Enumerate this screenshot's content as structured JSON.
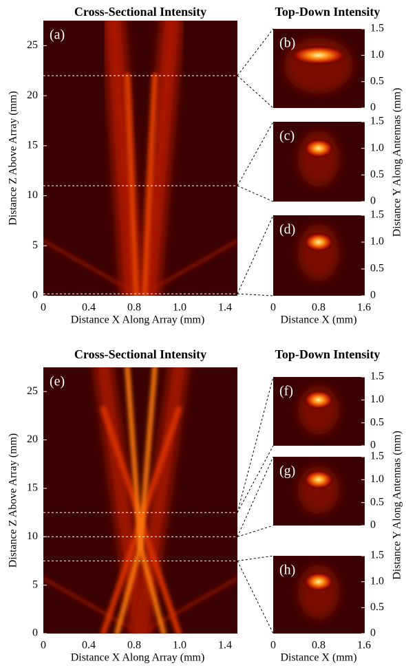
{
  "chart_data": [
    {
      "type": "heatmap",
      "cross_section": {
        "title": "Cross-Sectional Intensity",
        "panel_label": "(a)",
        "xlabel": "Distance X Along Array (mm)",
        "ylabel": "Distance Z Above Array (mm)",
        "xtick_labels": [
          "0",
          "0.4",
          "0.8",
          "1.0",
          "1.4"
        ],
        "ylim": [
          0,
          27.5
        ],
        "yticks": [
          0,
          5,
          10,
          15,
          20,
          25
        ],
        "slice_z": [
          22,
          11,
          0.2
        ]
      },
      "top_down": {
        "title": "Top-Down Intensity",
        "panel_labels": [
          "(b)",
          "(c)",
          "(d)"
        ],
        "xlabel": "Distance X (mm)",
        "ylabel": "Distance Y Along Antennas (mm)",
        "xtick_labels": [
          "0",
          "0.8",
          "1.6"
        ],
        "ylim": [
          0,
          1.5
        ],
        "yticks": [
          0,
          0.5,
          {
            "value": 1,
            "label": "1.0"
          },
          1.5
        ]
      }
    },
    {
      "type": "heatmap",
      "cross_section": {
        "title": "Cross-Sectional Intensity",
        "panel_label": "(e)",
        "xlabel": "Distance X Along Array (mm)",
        "ylabel": "Distance Z Above Array (mm)",
        "xtick_labels": [
          "0",
          "0.4",
          "0.8",
          "1.0",
          "1.4"
        ],
        "ylim": [
          0,
          27.5
        ],
        "yticks": [
          0,
          5,
          10,
          15,
          20,
          25
        ],
        "slice_z": [
          12.5,
          10,
          7.5
        ]
      },
      "top_down": {
        "title": "Top-Down Intensity",
        "panel_labels": [
          "(f)",
          "(g)",
          "(h)"
        ],
        "xlabel": "Distance X (mm)",
        "ylabel": "Distance Y Along Antennas (mm)",
        "xtick_labels": [
          "0",
          "0.8",
          "1.6"
        ],
        "ylim": [
          0,
          1.5
        ],
        "yticks": [
          0,
          0.5,
          {
            "value": 1,
            "label": "1.0"
          },
          1.5
        ]
      }
    }
  ]
}
